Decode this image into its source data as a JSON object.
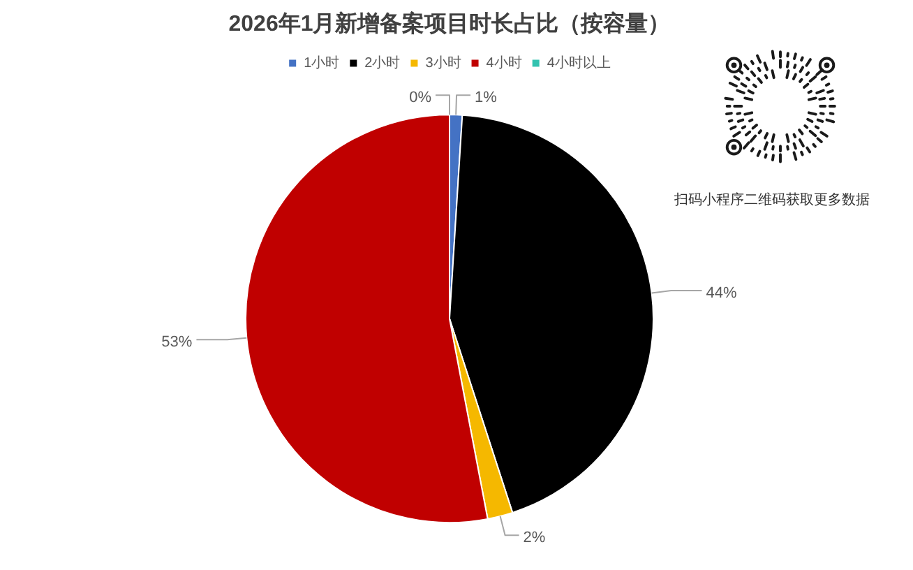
{
  "chart_data": {
    "type": "pie",
    "title": "2026年1月新增备案项目时长占比（按容量）",
    "categories": [
      "1小时",
      "2小时",
      "3小时",
      "4小时",
      "4小时以上"
    ],
    "values": [
      1,
      44,
      2,
      53,
      0
    ],
    "colors": [
      "#4472c4",
      "#000000",
      "#f5b800",
      "#c00000",
      "#33c3b0"
    ],
    "value_labels": [
      "1%",
      "44%",
      "2%",
      "53%",
      "0%"
    ],
    "legend": "top",
    "annotations": [
      "扫码小程序二维码获取更多数据"
    ]
  }
}
